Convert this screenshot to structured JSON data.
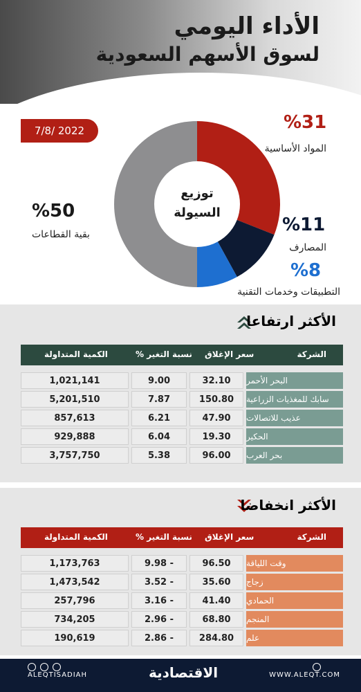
{
  "header": {
    "title_line1": "الأداء اليومي",
    "title_line2": "لسوق الأسهم السعودية"
  },
  "date": "7/8/ 2022",
  "chart_data": {
    "type": "pie",
    "title": "توزيع السيولة",
    "slices": [
      {
        "label": "المواد الأساسية",
        "value": 31,
        "value_label": "%31",
        "color": "#b11f15"
      },
      {
        "label": "المصارف",
        "value": 11,
        "value_label": "%11",
        "color": "#0d1a33"
      },
      {
        "label": "التطبيقات وخدمات التقنية",
        "value": 8,
        "value_label": "%8",
        "color": "#1e6fd0"
      },
      {
        "label": "بقية القطاعات",
        "value": 50,
        "value_label": "%50",
        "color": "#8e8e90"
      }
    ]
  },
  "gainers": {
    "title": "الأكثر ارتفاعا",
    "headers": {
      "company": "الشركة",
      "close": "سعر الإغلاق",
      "change": "نسبة التغير %",
      "qty": "الكمية المتداولة"
    },
    "rows": [
      {
        "company": "البحر الأحمر",
        "close": "32.10",
        "change": "9.00",
        "qty": "1,021,141"
      },
      {
        "company": "سابك للمغذيات الزراعية",
        "close": "150.80",
        "change": "7.87",
        "qty": "5,201,510"
      },
      {
        "company": "عذيب للاتصالات",
        "close": "47.90",
        "change": "6.21",
        "qty": "857,613"
      },
      {
        "company": "الحكير",
        "close": "19.30",
        "change": "6.04",
        "qty": "929,888"
      },
      {
        "company": "بحر العرب",
        "close": "96.00",
        "change": "5.38",
        "qty": "3,757,750"
      }
    ]
  },
  "losers": {
    "title": "الأكثر انخفاضا",
    "headers": {
      "company": "الشركة",
      "close": "سعر الإغلاق",
      "change": "نسبة التغير %",
      "qty": "الكمية المتداولة"
    },
    "rows": [
      {
        "company": "وقت اللياقة",
        "close": "96.50",
        "change": "9.98 -",
        "qty": "1,173,763"
      },
      {
        "company": "زجاج",
        "close": "35.60",
        "change": "3.52 -",
        "qty": "1,473,542"
      },
      {
        "company": "الحمادي",
        "close": "41.40",
        "change": "3.16 -",
        "qty": "257,796"
      },
      {
        "company": "المنجم",
        "close": "68.80",
        "change": "2.96 -",
        "qty": "734,205"
      },
      {
        "company": "علم",
        "close": "284.80",
        "change": "2.86 -",
        "qty": "190,619"
      }
    ]
  },
  "footer": {
    "handle": "ALEQTISADIAH",
    "logo": "الاقتصادية",
    "website": "WWW.ALEQT.COM"
  },
  "colors": {
    "gain_header": "#2c4a3f",
    "loss_header": "#b11f15",
    "gain_arrow": "#2c4a3f",
    "loss_arrow": "#b11f15"
  },
  "icons": {
    "gain": "double-chevron-up-icon",
    "loss": "double-chevron-down-icon"
  }
}
